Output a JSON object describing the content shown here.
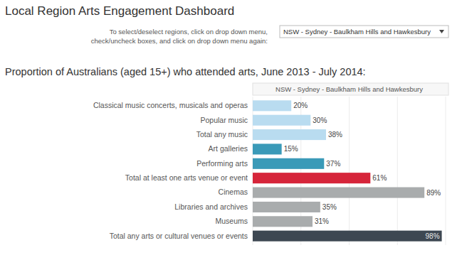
{
  "dashboard": {
    "title": "Local Region Arts Engagement Dashboard",
    "filter_label": [
      "To select/deselect regions, click on drop down menu,",
      "check/uncheck boxes, and click  on drop down menu again:"
    ],
    "filter_value": "NSW - Sydney - Baulkham Hills and Hawkesbury"
  },
  "chart_data": {
    "type": "bar",
    "orientation": "horizontal",
    "title": "Proportion of Australians (aged 15+) who attended arts, June 2013 - July 2014:",
    "panel_header": "NSW - Sydney - Baulkham Hills and Hawkesbury",
    "categories": [
      "Classical music concerts, musicals and operas",
      "Popular music",
      "Total any music",
      "Art galleries",
      "Performing arts",
      "Total at least one arts venue or event",
      "Cinemas",
      "Libraries and archives",
      "Museums",
      "Total any arts or cultural venues or events"
    ],
    "values": [
      20,
      30,
      38,
      15,
      37,
      61,
      89,
      35,
      31,
      98
    ],
    "value_labels": [
      "20%",
      "30%",
      "38%",
      "15%",
      "37%",
      "61%",
      "89%",
      "35%",
      "31%",
      "98%"
    ],
    "colors": [
      "#b9dcf0",
      "#b9dcf0",
      "#b9dcf0",
      "#3a9ab8",
      "#3a9ab8",
      "#d6253a",
      "#a9acad",
      "#a9acad",
      "#a9acad",
      "#3d4752"
    ],
    "xlim": [
      0,
      100
    ],
    "xticks": [
      0,
      25,
      50,
      75,
      100
    ],
    "grid": true,
    "data_labels": true,
    "tick_labels": "y"
  }
}
